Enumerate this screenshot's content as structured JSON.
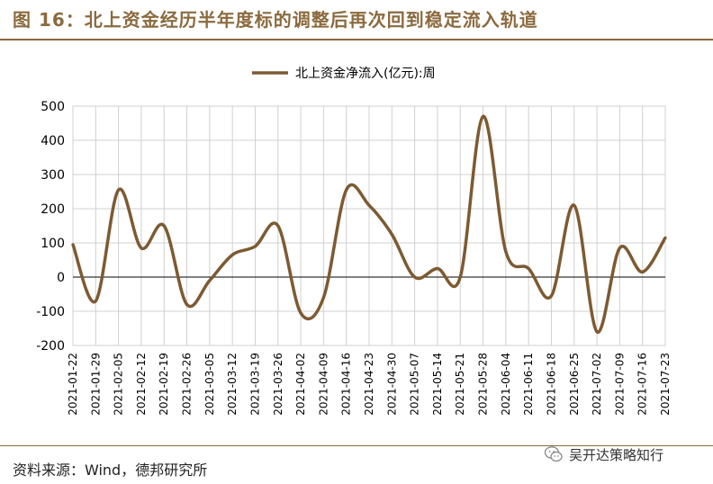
{
  "title": "图 16：北上资金经历半年度标的调整后再次回到稳定流入轨道",
  "source": "资料来源：Wind，德邦研究所",
  "watermark": "吴开达策略知行",
  "colors": {
    "accent": "#8B6A3E",
    "line": "#7D5A32",
    "grid": "#D0D0D0"
  },
  "chart_data": {
    "type": "line",
    "title": "",
    "xlabel": "",
    "ylabel": "",
    "ylim": [
      -200,
      500
    ],
    "yticks": [
      -200,
      -100,
      0,
      100,
      200,
      300,
      400,
      500
    ],
    "ytick_labels": [
      "-200",
      "-100",
      "0",
      "100",
      "200",
      "300",
      "400",
      "500"
    ],
    "grid": true,
    "legend": "top-center",
    "categories": [
      "2021-01-22",
      "2021-01-29",
      "2021-02-05",
      "2021-02-12",
      "2021-02-19",
      "2021-02-26",
      "2021-03-05",
      "2021-03-12",
      "2021-03-19",
      "2021-03-26",
      "2021-04-02",
      "2021-04-09",
      "2021-04-16",
      "2021-04-23",
      "2021-04-30",
      "2021-05-07",
      "2021-05-14",
      "2021-05-21",
      "2021-05-28",
      "2021-06-04",
      "2021-06-11",
      "2021-06-18",
      "2021-06-25",
      "2021-07-02",
      "2021-07-09",
      "2021-07-16",
      "2021-07-23"
    ],
    "series": [
      {
        "name": "北上资金净流入(亿元):周",
        "values": [
          95,
          -70,
          255,
          85,
          150,
          -80,
          -10,
          65,
          90,
          150,
          -105,
          -60,
          255,
          210,
          125,
          0,
          25,
          0,
          470,
          75,
          25,
          -55,
          210,
          -160,
          85,
          15,
          115
        ]
      }
    ]
  }
}
